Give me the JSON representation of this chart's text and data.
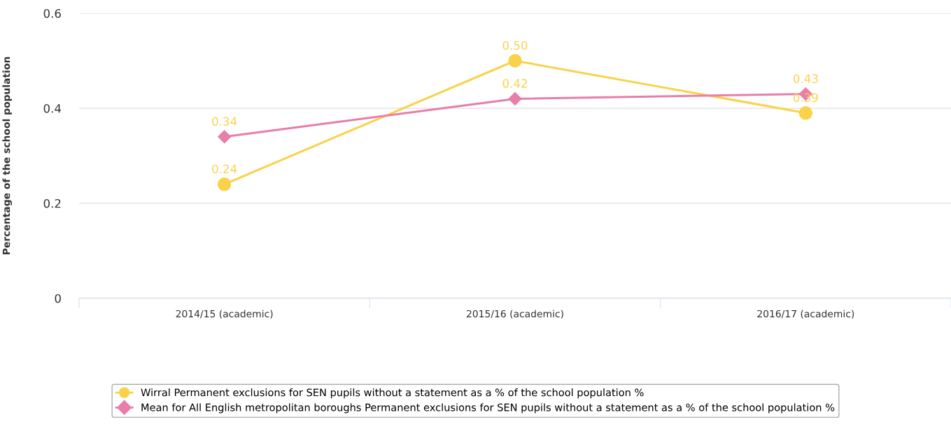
{
  "chart_data": {
    "type": "line",
    "ylabel": "Percentage of the school population",
    "categories": [
      "2014/15 (academic)",
      "2015/16 (academic)",
      "2016/17 (academic)"
    ],
    "series": [
      {
        "name": "Wirral Permanent exclusions for SEN pupils without a statement as a % of the school population %",
        "color": "#f9d24b",
        "marker": "circle",
        "values": [
          0.24,
          0.5,
          0.39
        ],
        "value_labels": [
          "0.24",
          "0.50",
          "0.39"
        ]
      },
      {
        "name": "Mean for All English metropolitan boroughs Permanent exclusions for SEN pupils without a statement as a % of the school population %",
        "color": "#e87ea9",
        "marker": "diamond",
        "values": [
          0.34,
          0.42,
          0.43
        ],
        "value_labels": [
          "0.34",
          "0.42",
          "0.43"
        ]
      }
    ],
    "ylim": [
      0,
      0.6
    ],
    "yticks": [
      0,
      0.2,
      0.4,
      0.6
    ],
    "grid": "y",
    "legend": "bottom"
  }
}
